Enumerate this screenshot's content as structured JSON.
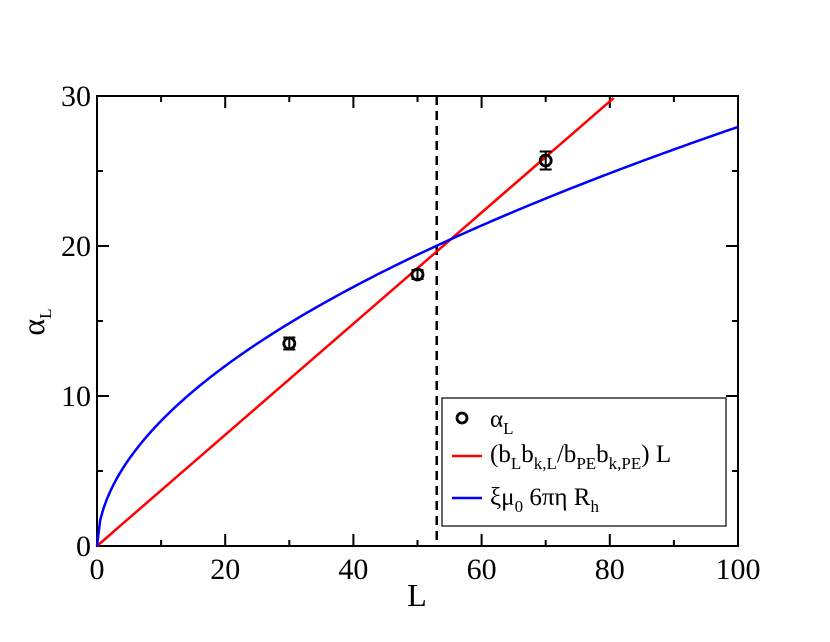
{
  "chart_data": {
    "type": "line",
    "xlabel": "L",
    "ylabel": "α",
    "ylabel_sub": "L",
    "xlim": [
      0,
      100
    ],
    "ylim": [
      0,
      30
    ],
    "xticks": [
      "0",
      "20",
      "40",
      "60",
      "80",
      "100"
    ],
    "yticks": [
      "0",
      "10",
      "20",
      "30"
    ],
    "grid": false,
    "legend_placement": "bottom-right",
    "vertical_line": {
      "x": 53,
      "style": "dashed",
      "color": "#000000"
    },
    "markers": {
      "name": "α",
      "name_sub": "L",
      "color": "#000000",
      "points": [
        {
          "x": 30,
          "y": 13.5,
          "err": 0.4
        },
        {
          "x": 50,
          "y": 18.1,
          "err": 0.3
        },
        {
          "x": 70,
          "y": 25.7,
          "err": 0.6
        }
      ]
    },
    "series": [
      {
        "name": "(bLbk,L/bPEbk,PE) L",
        "color": "#ff0000",
        "form": "linear",
        "slope": 0.3705,
        "x_range": [
          0,
          81
        ]
      },
      {
        "name": "ξμ0 6πη Rh",
        "color": "#0000ff",
        "form": "power",
        "coefficient": 2.49,
        "exponent": 0.525,
        "x_range": [
          0,
          100
        ]
      }
    ],
    "legend_labels": {
      "markers": [
        "α",
        "L"
      ],
      "red": [
        "(b",
        "L",
        "b",
        "k,L",
        "/b",
        "PE",
        "b",
        "k,PE",
        ") L"
      ],
      "blue": [
        "ξμ",
        "0",
        " 6πη R",
        "h"
      ]
    }
  }
}
